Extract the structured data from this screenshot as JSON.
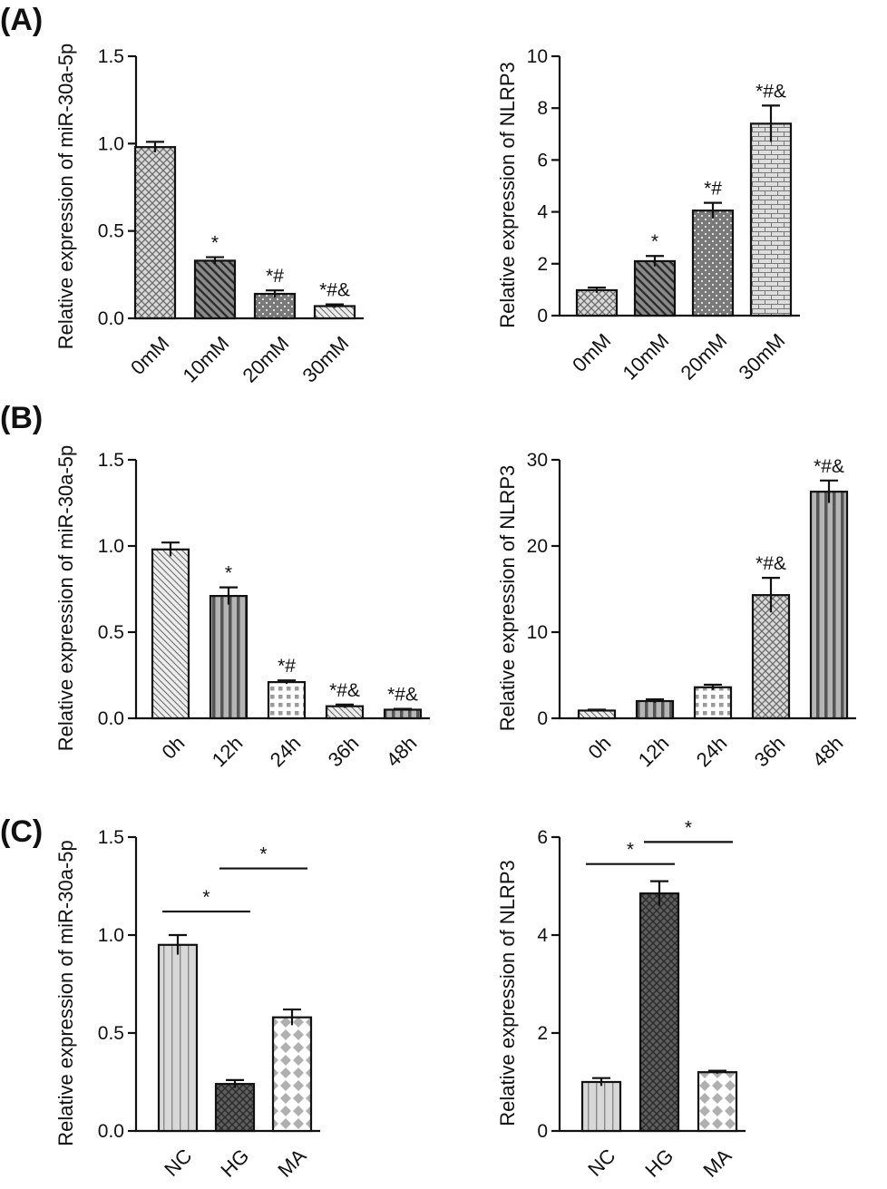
{
  "panel_labels": [
    "(A)",
    "(B)",
    "(C)"
  ],
  "chart_data": [
    {
      "type": "bar",
      "panel": "A-left",
      "ylabel": "Relative expression of miR-30a-5p",
      "ylim": [
        0,
        1.5
      ],
      "yticks": [
        0.0,
        0.5,
        1.0,
        1.5
      ],
      "tick_labels": [
        "0.0",
        "0.5",
        "1.0",
        "1.5"
      ],
      "categories": [
        "0mM",
        "10mM",
        "20mM",
        "30mM"
      ],
      "values": [
        0.98,
        0.33,
        0.14,
        0.07
      ],
      "errors": [
        0.03,
        0.02,
        0.02,
        0.01
      ],
      "annotations": [
        "",
        "*",
        "*#",
        "*#&"
      ],
      "patterns": [
        "crosshatch",
        "diag-dark",
        "dots-dark",
        "diag-light"
      ],
      "rotate_labels": true
    },
    {
      "type": "bar",
      "panel": "A-right",
      "ylabel": "Relative expression of NLRP3",
      "ylim": [
        0,
        10
      ],
      "yticks": [
        0,
        2,
        4,
        6,
        8,
        10
      ],
      "tick_labels": [
        "0",
        "2",
        "4",
        "6",
        "8",
        "10"
      ],
      "categories": [
        "0mM",
        "10mM",
        "20mM",
        "30mM"
      ],
      "values": [
        0.98,
        2.1,
        4.05,
        7.4
      ],
      "errors": [
        0.1,
        0.2,
        0.3,
        0.7
      ],
      "annotations": [
        "",
        "*",
        "*#",
        "*#&"
      ],
      "patterns": [
        "crosshatch",
        "diag-dark",
        "dots-dark",
        "brick"
      ],
      "rotate_labels": true
    },
    {
      "type": "bar",
      "panel": "B-left",
      "ylabel": "Relative expression of miR-30a-5p",
      "ylim": [
        0,
        1.5
      ],
      "yticks": [
        0.0,
        0.5,
        1.0,
        1.5
      ],
      "tick_labels": [
        "0.0",
        "0.5",
        "1.0",
        "1.5"
      ],
      "categories": [
        "0h",
        "12h",
        "24h",
        "36h",
        "48h"
      ],
      "values": [
        0.98,
        0.71,
        0.21,
        0.07,
        0.05
      ],
      "errors": [
        0.04,
        0.05,
        0.01,
        0.01,
        0.005
      ],
      "annotations": [
        "",
        "*",
        "*#",
        "*#&",
        "*#&"
      ],
      "patterns": [
        "diag-light",
        "vstripe",
        "grid",
        "diag-light",
        "vstripe"
      ],
      "rotate_labels": true
    },
    {
      "type": "bar",
      "panel": "B-right",
      "ylabel": "Relative expression of NLRP3",
      "ylim": [
        0,
        30
      ],
      "yticks": [
        0,
        10,
        20,
        30
      ],
      "tick_labels": [
        "0",
        "10",
        "20",
        "30"
      ],
      "categories": [
        "0h",
        "12h",
        "24h",
        "36h",
        "48h"
      ],
      "values": [
        0.9,
        2.0,
        3.6,
        14.3,
        26.3
      ],
      "errors": [
        0.1,
        0.2,
        0.3,
        2.0,
        1.3
      ],
      "annotations": [
        "",
        "",
        "",
        "*#&",
        "*#&"
      ],
      "patterns": [
        "diag-light",
        "vstripe",
        "grid",
        "crosshatch",
        "vstripe"
      ],
      "rotate_labels": true
    },
    {
      "type": "bar",
      "panel": "C-left",
      "ylabel": "Relative expression of miR-30a-5p",
      "ylim": [
        0,
        1.5
      ],
      "yticks": [
        0.0,
        0.5,
        1.0,
        1.5
      ],
      "tick_labels": [
        "0.0",
        "0.5",
        "1.0",
        "1.5"
      ],
      "categories": [
        "NC",
        "HG",
        "MA"
      ],
      "values": [
        0.95,
        0.24,
        0.58
      ],
      "errors": [
        0.05,
        0.02,
        0.04
      ],
      "annotations": [
        "",
        "",
        ""
      ],
      "comparisons": [
        {
          "from": 0,
          "to": 1,
          "y": 1.12,
          "label": "*"
        },
        {
          "from": 1,
          "to": 2,
          "y": 1.34,
          "label": "*"
        }
      ],
      "patterns": [
        "vstripe-light",
        "crosshatch-dark",
        "diamonds"
      ],
      "rotate_labels": true
    },
    {
      "type": "bar",
      "panel": "C-right",
      "ylabel": "Relative expression of NLRP3",
      "ylim": [
        0,
        6
      ],
      "yticks": [
        0,
        2,
        4,
        6
      ],
      "tick_labels": [
        "0",
        "2",
        "4",
        "6"
      ],
      "categories": [
        "NC",
        "HG",
        "MA"
      ],
      "values": [
        1.0,
        4.85,
        1.2
      ],
      "errors": [
        0.08,
        0.25,
        0.03
      ],
      "annotations": [
        "",
        "",
        ""
      ],
      "comparisons": [
        {
          "from": 0,
          "to": 1,
          "y": 5.45,
          "label": "*"
        },
        {
          "from": 1,
          "to": 2,
          "y": 5.9,
          "label": "*"
        }
      ],
      "patterns": [
        "vstripe-light",
        "crosshatch-dark",
        "diamonds"
      ],
      "rotate_labels": true
    }
  ]
}
